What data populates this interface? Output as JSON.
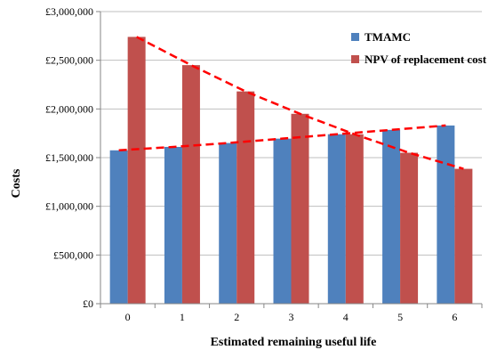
{
  "chart_data": {
    "type": "bar",
    "title": "",
    "xlabel": "Estimated remaining useful life",
    "ylabel": "Costs",
    "categories": [
      "0",
      "1",
      "2",
      "3",
      "4",
      "5",
      "6"
    ],
    "series": [
      {
        "name": "TMAMC",
        "color": "#4F81BD",
        "values": [
          1575000,
          1610000,
          1650000,
          1695000,
          1740000,
          1785000,
          1830000
        ]
      },
      {
        "name": "NPV of replacement cost",
        "color": "#C0504D",
        "values": [
          2740000,
          2450000,
          2180000,
          1950000,
          1740000,
          1550000,
          1385000
        ]
      }
    ],
    "ylim": [
      0,
      3000000
    ],
    "yticks": [
      0,
      500000,
      1000000,
      1500000,
      2000000,
      2500000,
      3000000
    ],
    "ytick_labels": [
      "£0",
      "£500,000",
      "£1,000,000",
      "£1,500,000",
      "£2,000,000",
      "£2,500,000",
      "£3,000,000"
    ],
    "grid": true,
    "legend_position": "top-right",
    "trendlines": [
      {
        "series": "TMAMC",
        "style": "dashed",
        "color": "#FF0000",
        "values": [
          1575000,
          1610000,
          1650000,
          1695000,
          1740000,
          1785000,
          1830000
        ]
      },
      {
        "series": "NPV of replacement cost",
        "style": "dashed",
        "color": "#FF0000",
        "values": [
          2740000,
          2450000,
          2180000,
          1950000,
          1740000,
          1550000,
          1385000
        ]
      }
    ]
  }
}
